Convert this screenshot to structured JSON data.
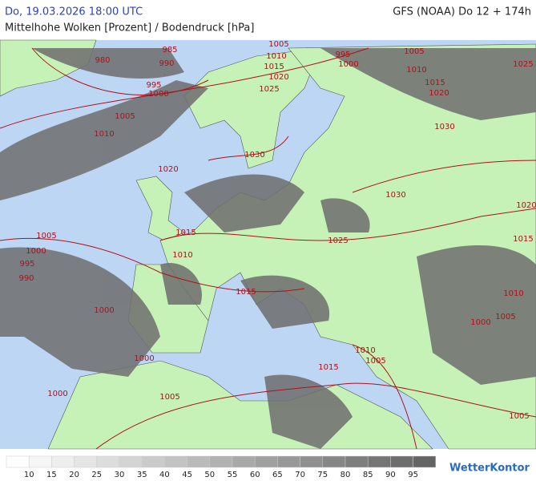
{
  "header": {
    "datetime": "Do, 19.03.2026 18:00 UTC",
    "model": "GFS (NOAA) Do 12 + 174h",
    "subtitle": "Mittelhohe Wolken [Prozent] / Bodendruck [hPa]"
  },
  "map": {
    "isobar_labels": [
      980,
      985,
      990,
      995,
      1000,
      1005,
      1010,
      1005,
      1010,
      1015,
      1020,
      1025,
      995,
      1000,
      1005,
      1010,
      1015,
      1020,
      1025,
      1030,
      1030,
      1020,
      1030,
      1020,
      1015,
      1025,
      1015,
      1010,
      1005,
      1000,
      995,
      990,
      1000,
      1015,
      1010,
      1005,
      1000,
      1000,
      1010,
      1005,
      1015,
      1000,
      1005,
      1005
    ]
  },
  "legend": {
    "levels": [
      10,
      15,
      20,
      25,
      30,
      35,
      40,
      45,
      50,
      55,
      60,
      65,
      70,
      75,
      80,
      85,
      90,
      95
    ]
  },
  "logo": "WetterKontor"
}
